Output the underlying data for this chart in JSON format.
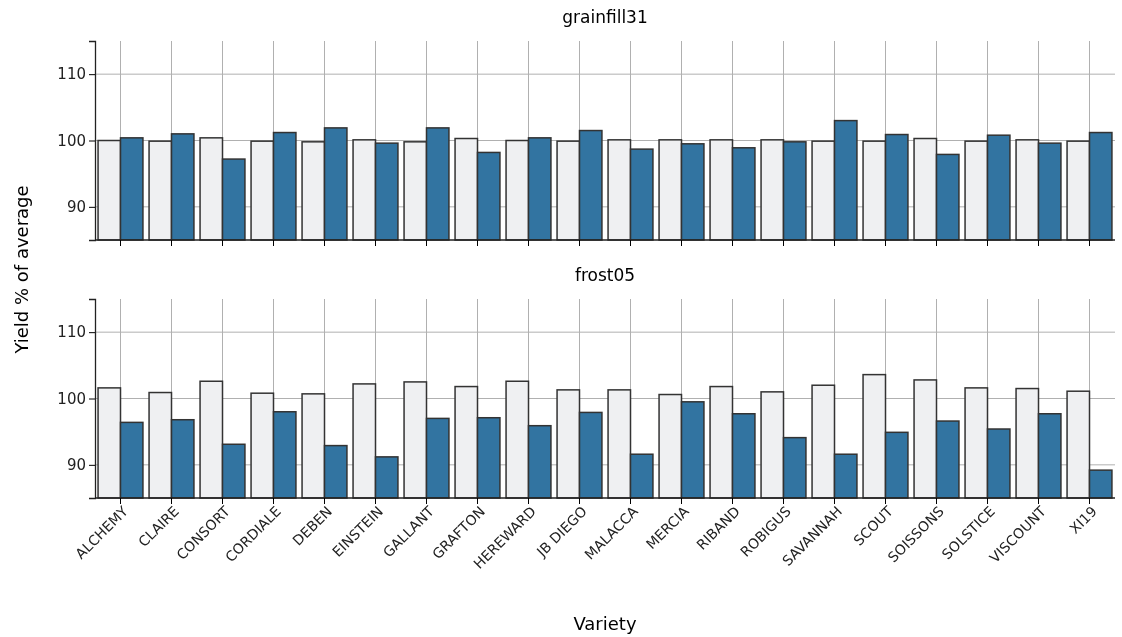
{
  "chart_data": [
    {
      "type": "bar",
      "title": "grainfill31",
      "ylabel": "Yield % of average",
      "categories": [
        null,
        null,
        null,
        null,
        null,
        null,
        null,
        null,
        null,
        null,
        null,
        null,
        null,
        null,
        null,
        null,
        null,
        null,
        null,
        null
      ],
      "series": [
        {
          "color": "#eff0f2",
          "values": [
            100,
            99.9,
            100.4,
            99.9,
            99.8,
            100.1,
            99.8,
            100.3,
            100,
            99.9,
            100.1,
            100.1,
            100.1,
            100.1,
            99.9,
            99.9,
            100.3,
            99.9,
            100.1,
            99.9
          ]
        },
        {
          "color": "#3274a1",
          "values": [
            100.4,
            101,
            97.2,
            101.2,
            101.9,
            99.6,
            101.9,
            98.2,
            100.4,
            101.5,
            98.7,
            99.5,
            98.9,
            99.8,
            103,
            100.9,
            97.9,
            100.8,
            99.6,
            101.2
          ]
        }
      ],
      "ylim": [
        85,
        115
      ],
      "yticks": [
        90,
        100,
        110
      ],
      "grid": true,
      "tick_labels": "y"
    },
    {
      "type": "bar",
      "title": "frost05",
      "xlabel": "Variety",
      "categories": [
        "ALCHEMY",
        "CLAIRE",
        "CONSORT",
        "CORDIALE",
        "DEBEN",
        "EINSTEIN",
        "GALLANT",
        "GRAFTON",
        "HEREWARD",
        "JB DIEGO",
        "MALACCA",
        "MERCIA",
        "RIBAND",
        "ROBIGUS",
        "SAVANNAH",
        "SCOUT",
        "SOISSONS",
        "SOLSTICE",
        "VISCOUNT",
        "XI19"
      ],
      "series": [
        {
          "color": "#eff0f2",
          "values": [
            101.6,
            100.9,
            102.6,
            100.8,
            100.7,
            102.2,
            102.5,
            101.8,
            102.6,
            101.3,
            101.3,
            100.6,
            101.8,
            101,
            102,
            103.6,
            102.8,
            101.6,
            101.5,
            101.1
          ]
        },
        {
          "color": "#3274a1",
          "values": [
            96.4,
            96.8,
            93.1,
            98,
            92.9,
            91.2,
            97,
            97.1,
            95.9,
            97.9,
            91.6,
            99.5,
            97.7,
            94.1,
            91.6,
            94.9,
            96.6,
            95.4,
            97.7,
            89.2
          ]
        }
      ],
      "ylim": [
        85,
        115
      ],
      "yticks": [
        90,
        100,
        110
      ],
      "grid": true
    }
  ]
}
